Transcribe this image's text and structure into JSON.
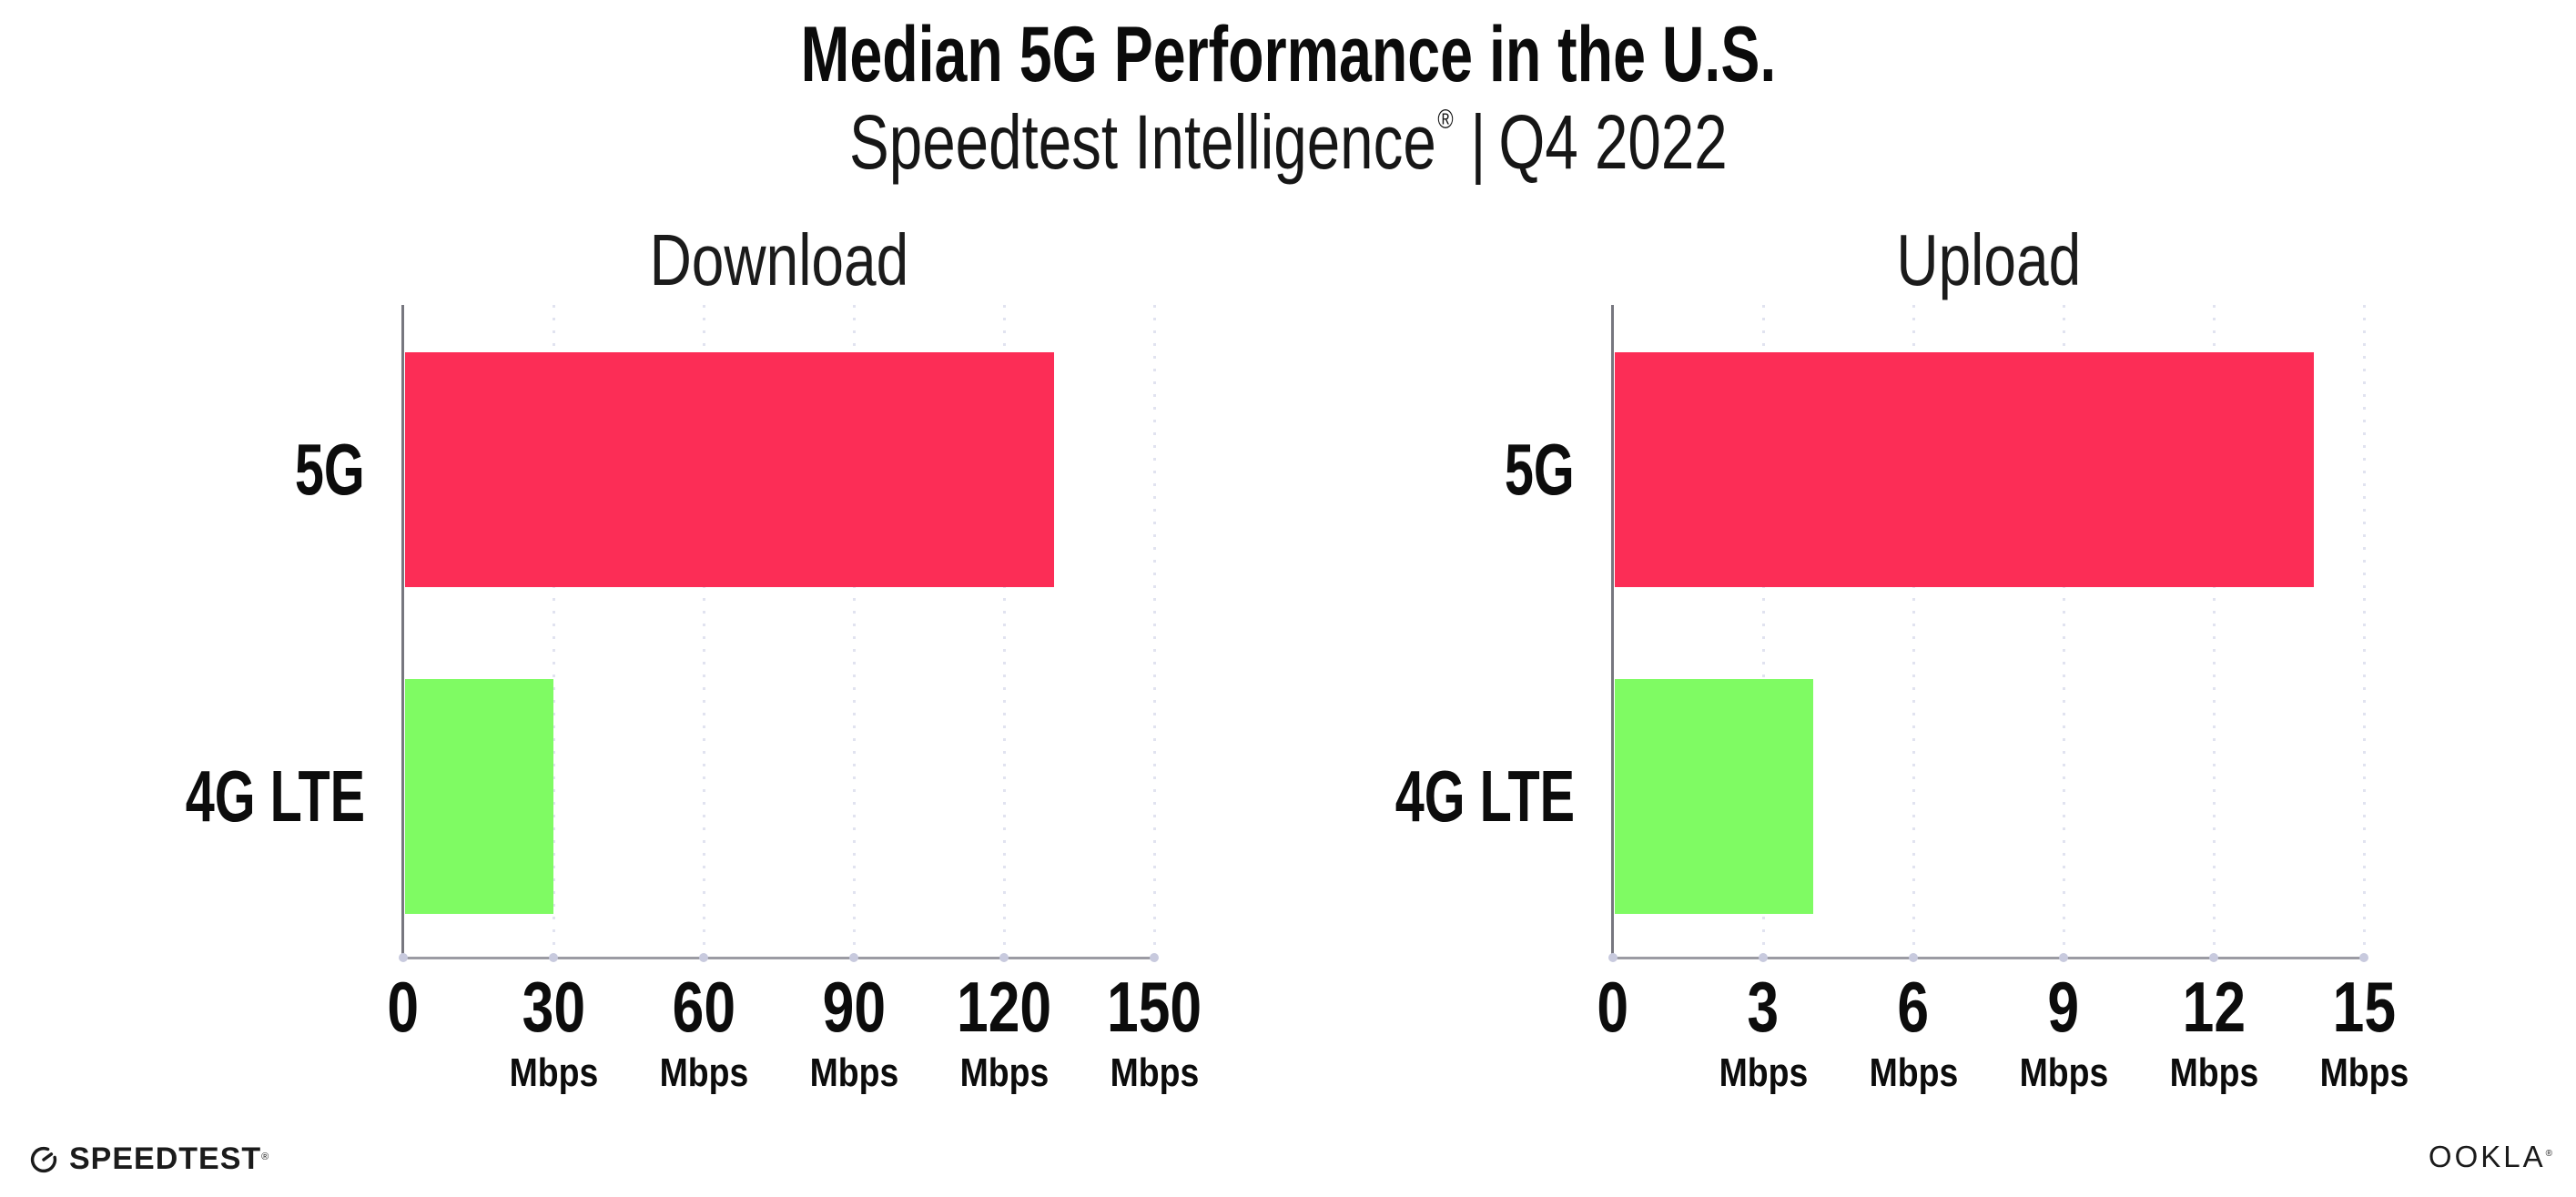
{
  "header": {
    "title": "Median 5G Performance in the U.S.",
    "subtitle": {
      "brand": "Speedtest Intelligence",
      "registered": "®",
      "separator": "|",
      "period": "Q4 2022"
    }
  },
  "chart_data": [
    {
      "type": "bar",
      "orientation": "horizontal",
      "title": "Download",
      "categories": [
        "5G",
        "4G LTE"
      ],
      "values": [
        130,
        30
      ],
      "unit": "Mbps",
      "xlim": [
        0,
        150
      ],
      "xticks": [
        0,
        30,
        60,
        90,
        120,
        150
      ],
      "tick_unit_label": "Mbps",
      "bar_colors": [
        "#FC2D56",
        "#7FFB63"
      ],
      "grid": "dotted vertical gridlines at each tick",
      "legend": "none"
    },
    {
      "type": "bar",
      "orientation": "horizontal",
      "title": "Upload",
      "categories": [
        "5G",
        "4G LTE"
      ],
      "values": [
        14,
        4
      ],
      "unit": "Mbps",
      "xlim": [
        0,
        15
      ],
      "xticks": [
        0,
        3,
        6,
        9,
        12,
        15
      ],
      "tick_unit_label": "Mbps",
      "bar_colors": [
        "#FC2D56",
        "#7FFB63"
      ],
      "grid": "dotted vertical gridlines at each tick",
      "legend": "none"
    }
  ],
  "colors": {
    "bar_5g": "#FC2D56",
    "bar_4g_lte": "#7FFB63",
    "axis_vertical": "#77777f",
    "axis_horizontal": "#9b9ba3",
    "gridline": "#e1e3f0",
    "grid_base_dot": "#c8cade",
    "text": "#0c0c0c",
    "background": "#ffffff"
  },
  "footer": {
    "speedtest": {
      "label": "SPEEDTEST",
      "mark": "®",
      "icon": "speedtest-gauge-icon"
    },
    "ookla": {
      "label": "OOKLA",
      "mark": "®"
    }
  }
}
